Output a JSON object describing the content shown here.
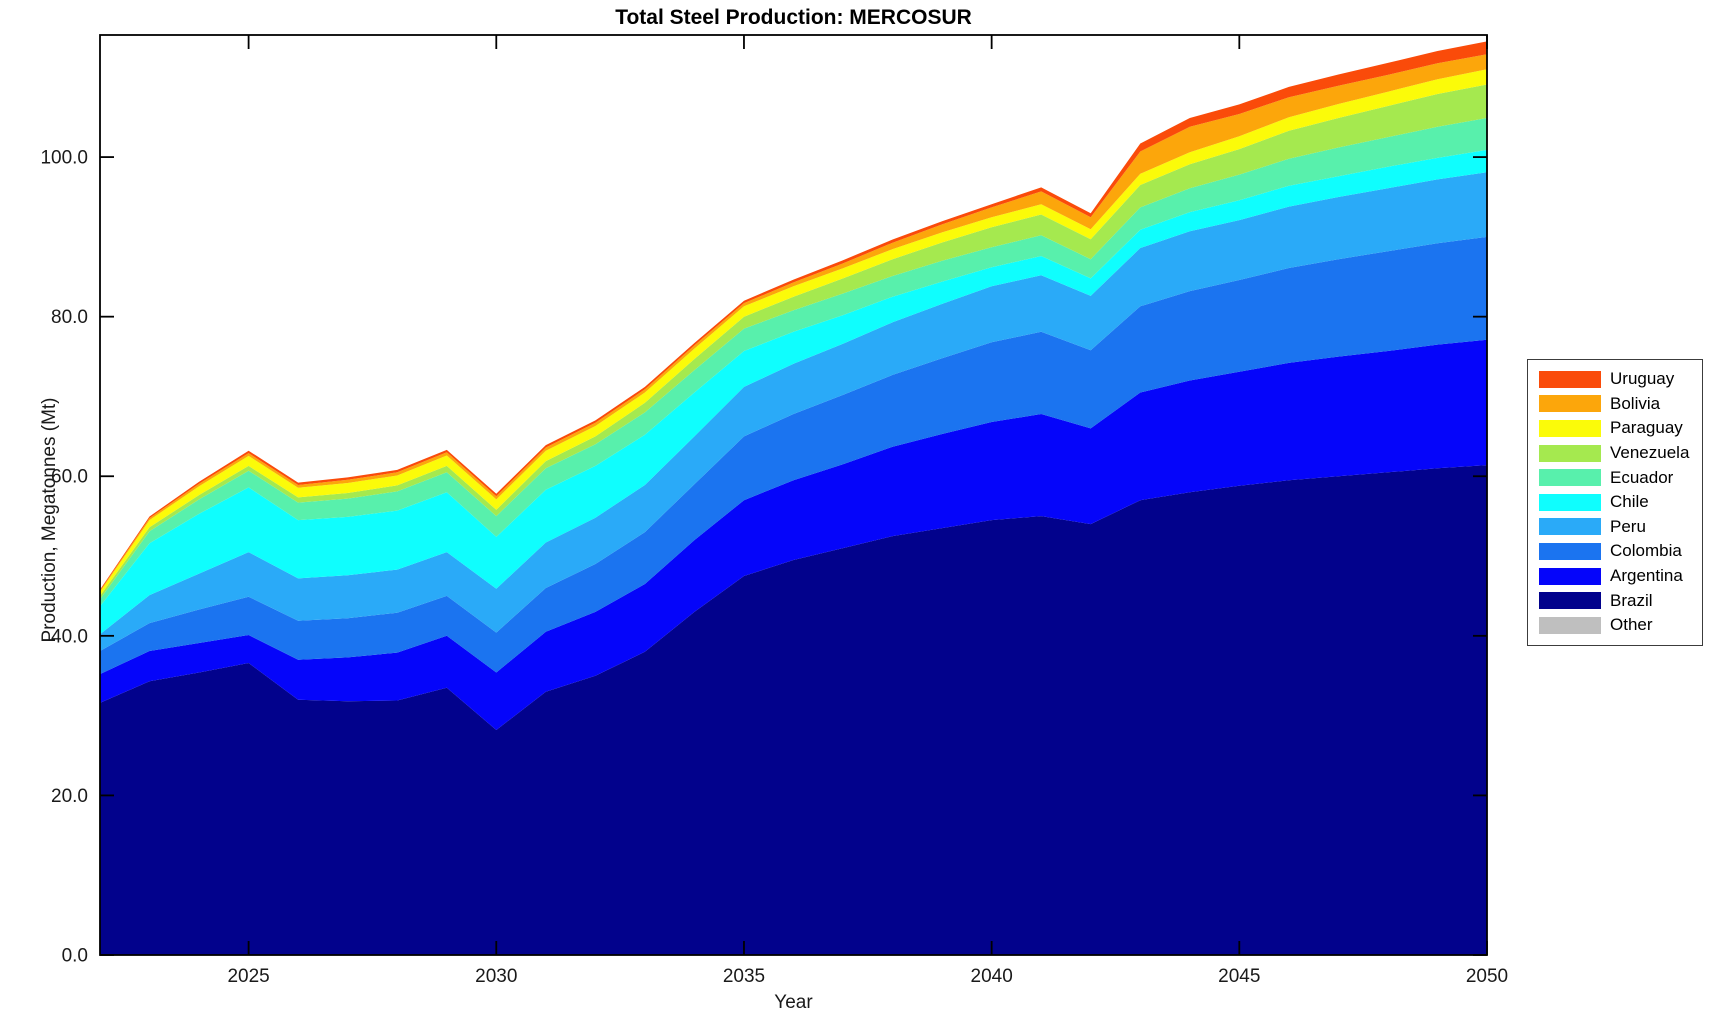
{
  "title": "Total Steel Production: MERCOSUR",
  "axes": {
    "xlabel": "Year",
    "ylabel": "Production, Megatonnes (Mt)",
    "x_tick_labels": [
      "2025",
      "2030",
      "2035",
      "2040",
      "2045",
      "2050"
    ],
    "y_tick_labels": [
      "0.0",
      "20.0",
      "40.0",
      "60.0",
      "80.0",
      "100.0"
    ]
  },
  "legend": {
    "position": "right-outside",
    "items_top_to_bottom": [
      "Uruguay",
      "Bolivia",
      "Paraguay",
      "Venezuela",
      "Ecuador",
      "Chile",
      "Peru",
      "Colombia",
      "Argentina",
      "Brazil",
      "Other"
    ]
  },
  "chart_data": {
    "type": "area",
    "stacked": true,
    "title": "Total Steel Production: MERCOSUR",
    "xlabel": "Year",
    "ylabel": "Production, Megatonnes (Mt)",
    "grid": false,
    "legend_position": "right-outside",
    "xlim": [
      2022,
      2050
    ],
    "ylim": [
      0,
      115.3
    ],
    "x_tick_values": [
      2025,
      2030,
      2035,
      2040,
      2045,
      2050
    ],
    "y_tick_values": [
      0,
      20,
      40,
      60,
      80,
      100
    ],
    "x": [
      2022,
      2023,
      2024,
      2025,
      2026,
      2027,
      2028,
      2029,
      2030,
      2031,
      2032,
      2033,
      2034,
      2035,
      2036,
      2037,
      2038,
      2039,
      2040,
      2041,
      2042,
      2043,
      2044,
      2045,
      2046,
      2047,
      2048,
      2049,
      2050
    ],
    "series_bottom_to_top": [
      {
        "name": "Other",
        "color": "#bfbfbf",
        "values": [
          0,
          0,
          0,
          0,
          0,
          0,
          0,
          0,
          0,
          0,
          0,
          0,
          0,
          0,
          0,
          0,
          0,
          0,
          0,
          0,
          0,
          0,
          0,
          0,
          0,
          0,
          0,
          0,
          0
        ]
      },
      {
        "name": "Brazil",
        "color": "#02028c",
        "values": [
          31.6,
          34.3,
          35.4,
          36.6,
          32.0,
          31.8,
          31.9,
          33.5,
          28.2,
          33.0,
          35.0,
          38.0,
          43.0,
          47.5,
          49.5,
          51.0,
          52.5,
          53.5,
          54.5,
          55.0,
          54.0,
          57.0,
          58.0,
          58.8,
          59.5,
          60.0,
          60.5,
          61.0,
          61.4
        ]
      },
      {
        "name": "Argentina",
        "color": "#0505fa",
        "values": [
          3.6,
          3.8,
          3.7,
          3.5,
          5.0,
          5.5,
          6.0,
          6.5,
          7.2,
          7.5,
          8.0,
          8.5,
          9.0,
          9.5,
          10.0,
          10.5,
          11.2,
          11.8,
          12.3,
          12.8,
          12.0,
          13.5,
          14.0,
          14.3,
          14.7,
          15.0,
          15.2,
          15.5,
          15.7
        ]
      },
      {
        "name": "Colombia",
        "color": "#1b74f0",
        "values": [
          2.9,
          3.5,
          4.2,
          4.8,
          4.9,
          4.9,
          5.0,
          5.0,
          5.0,
          5.5,
          6.0,
          6.5,
          7.0,
          8.0,
          8.3,
          8.7,
          9.0,
          9.5,
          10.0,
          10.3,
          9.8,
          10.8,
          11.2,
          11.5,
          11.9,
          12.2,
          12.5,
          12.7,
          12.9
        ]
      },
      {
        "name": "Peru",
        "color": "#2aaaf8",
        "values": [
          2.1,
          3.5,
          4.5,
          5.6,
          5.3,
          5.4,
          5.4,
          5.5,
          5.5,
          5.7,
          5.8,
          5.9,
          6.0,
          6.2,
          6.3,
          6.4,
          6.6,
          6.8,
          7.0,
          7.1,
          6.8,
          7.3,
          7.5,
          7.5,
          7.7,
          7.8,
          7.9,
          8.0,
          8.1
        ]
      },
      {
        "name": "Chile",
        "color": "#0ffefe",
        "values": [
          3.5,
          6.5,
          7.5,
          8.1,
          7.3,
          7.3,
          7.4,
          7.5,
          6.5,
          6.6,
          6.5,
          6.3,
          5.5,
          4.5,
          4.0,
          3.6,
          3.2,
          2.8,
          2.4,
          2.4,
          2.2,
          2.3,
          2.4,
          2.5,
          2.6,
          2.6,
          2.7,
          2.7,
          2.8
        ]
      },
      {
        "name": "Ecuador",
        "color": "#58f0ac",
        "values": [
          0.9,
          1.5,
          1.8,
          2.1,
          2.2,
          2.3,
          2.4,
          2.5,
          2.6,
          2.7,
          2.7,
          2.8,
          2.8,
          2.8,
          2.7,
          2.7,
          2.6,
          2.6,
          2.5,
          2.6,
          2.4,
          2.8,
          3.0,
          3.2,
          3.4,
          3.6,
          3.7,
          3.9,
          4.0
        ]
      },
      {
        "name": "Venezuela",
        "color": "#a5e94f",
        "values": [
          0.4,
          0.5,
          0.55,
          0.6,
          0.65,
          0.7,
          0.75,
          0.8,
          0.8,
          0.9,
          1.0,
          1.2,
          1.4,
          1.5,
          1.7,
          1.9,
          2.1,
          2.3,
          2.5,
          2.6,
          2.5,
          2.8,
          3.0,
          3.2,
          3.5,
          3.7,
          3.9,
          4.1,
          4.2
        ]
      },
      {
        "name": "Paraguay",
        "color": "#fbfb09",
        "values": [
          0.5,
          0.9,
          1.1,
          1.25,
          1.2,
          1.25,
          1.25,
          1.3,
          1.3,
          1.3,
          1.3,
          1.3,
          1.3,
          1.3,
          1.3,
          1.28,
          1.27,
          1.26,
          1.25,
          1.3,
          1.25,
          1.4,
          1.5,
          1.6,
          1.7,
          1.75,
          1.8,
          1.85,
          1.9
        ]
      },
      {
        "name": "Bolivia",
        "color": "#fca60b",
        "values": [
          0.15,
          0.25,
          0.3,
          0.35,
          0.35,
          0.4,
          0.4,
          0.4,
          0.4,
          0.4,
          0.4,
          0.4,
          0.4,
          0.4,
          0.5,
          0.6,
          0.8,
          1.0,
          1.25,
          1.6,
          1.5,
          2.8,
          3.2,
          2.8,
          2.5,
          2.3,
          2.1,
          2.0,
          1.9
        ]
      },
      {
        "name": "Uruguay",
        "color": "#fa4b0a",
        "values": [
          0.15,
          0.2,
          0.25,
          0.3,
          0.3,
          0.3,
          0.3,
          0.3,
          0.3,
          0.3,
          0.3,
          0.3,
          0.3,
          0.3,
          0.35,
          0.4,
          0.4,
          0.4,
          0.4,
          0.5,
          0.5,
          1.0,
          1.1,
          1.2,
          1.3,
          1.4,
          1.5,
          1.55,
          1.6
        ]
      }
    ]
  },
  "frame_color": "#000000"
}
